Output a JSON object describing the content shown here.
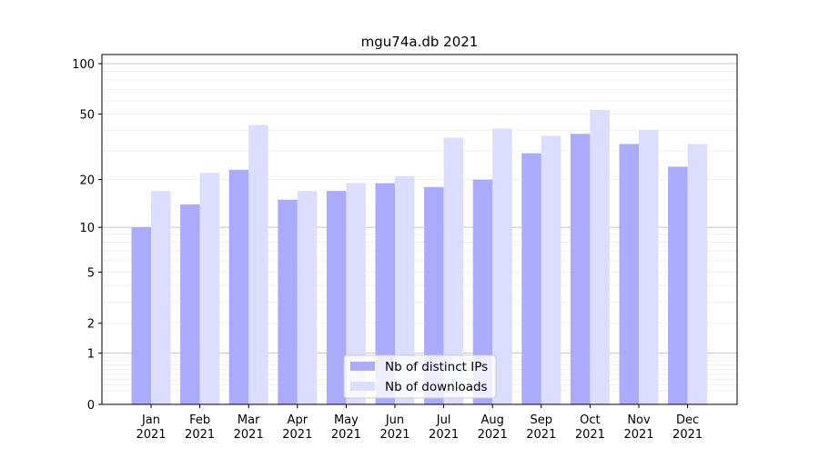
{
  "chart_data": {
    "type": "bar",
    "title": "mgu74a.db 2021",
    "xlabel": "",
    "ylabel": "",
    "yscale": "log1p",
    "ylim": [
      0,
      100
    ],
    "yticks": [
      0,
      1,
      2,
      5,
      10,
      20,
      50,
      100
    ],
    "grid": true,
    "legend_position": "bottom-center",
    "categories": [
      [
        "Jan",
        "2021"
      ],
      [
        "Feb",
        "2021"
      ],
      [
        "Mar",
        "2021"
      ],
      [
        "Apr",
        "2021"
      ],
      [
        "May",
        "2021"
      ],
      [
        "Jun",
        "2021"
      ],
      [
        "Jul",
        "2021"
      ],
      [
        "Aug",
        "2021"
      ],
      [
        "Sep",
        "2021"
      ],
      [
        "Oct",
        "2021"
      ],
      [
        "Nov",
        "2021"
      ],
      [
        "Dec",
        "2021"
      ]
    ],
    "series": [
      {
        "name": "Nb of distinct IPs",
        "color": "#aaaaff",
        "values": [
          10,
          14,
          23,
          15,
          17,
          19,
          18,
          20,
          29,
          38,
          33,
          24
        ]
      },
      {
        "name": "Nb of downloads",
        "color": "#ddddff",
        "values": [
          17,
          22,
          43,
          17,
          19,
          21,
          36,
          41,
          37,
          53,
          40,
          33
        ]
      }
    ]
  }
}
